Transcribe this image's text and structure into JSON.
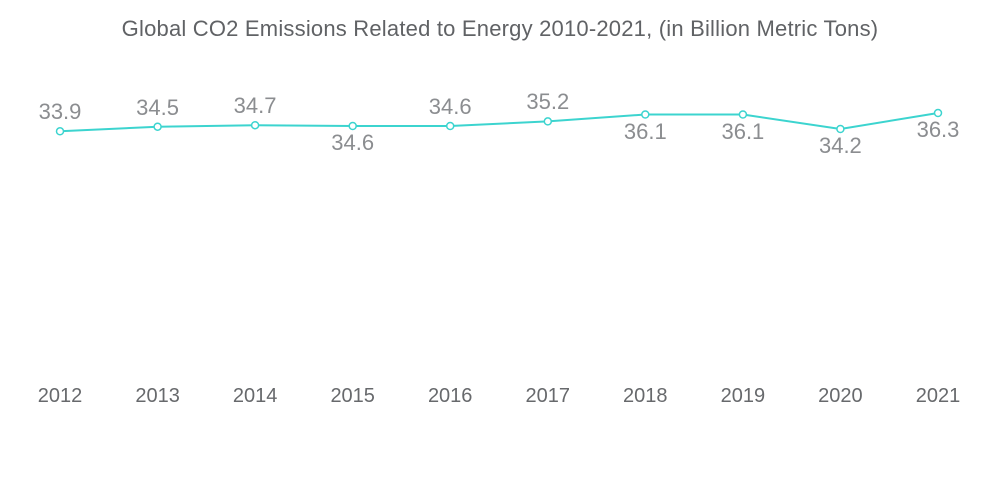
{
  "chart_data": {
    "type": "line",
    "title": "Global CO2 Emissions Related to Energy 2010-2021, (in Billion Metric Tons)",
    "categories": [
      "2012",
      "2013",
      "2014",
      "2015",
      "2016",
      "2017",
      "2018",
      "2019",
      "2020",
      "2021"
    ],
    "series": [
      {
        "name": "Global CO2 emissions related to energy",
        "values": [
          33.9,
          34.5,
          34.7,
          34.6,
          34.6,
          35.2,
          36.1,
          36.1,
          34.2,
          36.3
        ]
      }
    ],
    "data_labels": [
      "33.9",
      "34.5",
      "34.7",
      "34.6",
      "34.6",
      "35.2",
      "36.1",
      "36.1",
      "34.2",
      "36.3"
    ],
    "label_placement": [
      "above",
      "above",
      "above",
      "below",
      "above",
      "above",
      "below",
      "below",
      "below",
      "below"
    ],
    "xlabel": "",
    "ylabel": "",
    "ylim": [
      0,
      36.3
    ],
    "grid": false,
    "legend_position": "none",
    "marker": "open-circle"
  },
  "colors": {
    "background": "#ffffff",
    "line": "#3cd4cf",
    "marker_fill": "#ffffff",
    "title_text": "#606265",
    "data_label_text": "#8b8d90",
    "axis_label_text": "#67696c"
  }
}
